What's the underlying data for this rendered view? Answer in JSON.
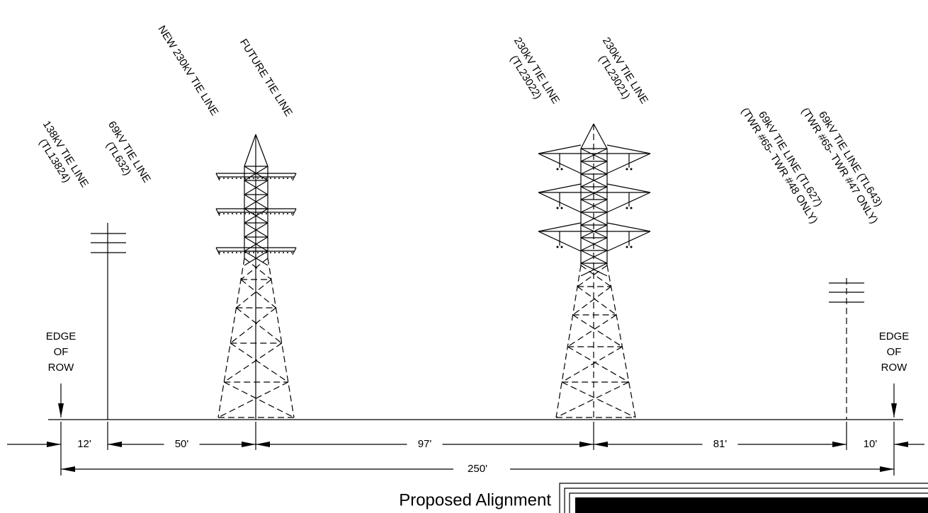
{
  "labels": [
    {
      "lines": [
        "138kV TIE LINE",
        "(TL13824)"
      ]
    },
    {
      "lines": [
        "69kV TIE LINE",
        "(TL632)"
      ]
    },
    {
      "lines": [
        "NEW 230kV TIE LINE"
      ]
    },
    {
      "lines": [
        "FUTURE TIE LINE"
      ]
    },
    {
      "lines": [
        "230kV TIE LINE",
        "(TL23022)"
      ]
    },
    {
      "lines": [
        "230kV TIE LINE",
        "(TL23021)"
      ]
    },
    {
      "lines": [
        "69kV TIE LINE (TL627)",
        "(TWR #65- TWR #48 ONLY)"
      ]
    },
    {
      "lines": [
        "69kV TIE LINE (TL643)",
        "(TWR #65- TWR #47 ONLY)"
      ]
    }
  ],
  "edges": {
    "left": [
      "EDGE",
      "OF",
      "ROW"
    ],
    "right": [
      "EDGE",
      "OF",
      "ROW"
    ]
  },
  "dimensions": [
    "12'",
    "50'",
    "97'",
    "81'",
    "10'"
  ],
  "total": "250'",
  "title": "Proposed Alignment"
}
